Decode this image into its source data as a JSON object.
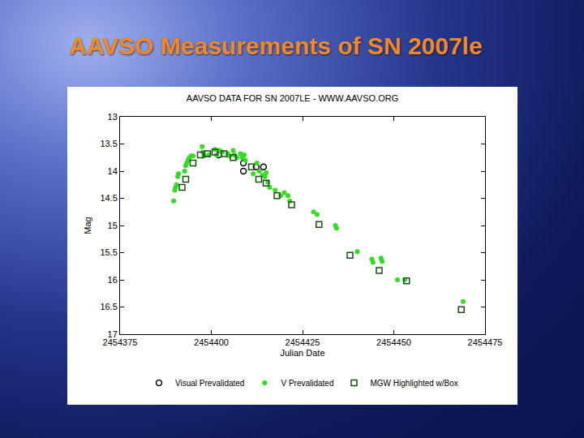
{
  "slide": {
    "title": "AAVSO Measurements of SN 2007le"
  },
  "chart_data": {
    "type": "scatter",
    "title": "AAVSO DATA FOR SN 2007LE - WWW.AAVSO.ORG",
    "x_label": "Julian Date",
    "y_label": "Mag",
    "xlim": [
      2454375,
      2454475
    ],
    "xticks": [
      2454375,
      2454400,
      2454425,
      2454450,
      2454475
    ],
    "ylim": [
      17,
      13
    ],
    "yticks": [
      13,
      13.5,
      14,
      14.5,
      15,
      15.5,
      16,
      16.5,
      17
    ],
    "grid": false,
    "legend": "bottom",
    "series": [
      {
        "name": "Visual Prevalidated",
        "color": "#000000",
        "marker": "circle-open",
        "x": [
          2454402.0,
          2454408.8,
          2454408.8,
          2454412.3,
          2454414.3
        ],
        "values": [
          13.7,
          14.0,
          13.85,
          13.92,
          13.92
        ]
      },
      {
        "name": "V Prevalidated",
        "color": "#33dd22",
        "marker": "circle",
        "x": [
          2454389.7,
          2454390.0,
          2454390.2,
          2454390.5,
          2454390.8,
          2454391.0,
          2454392.7,
          2454393.0,
          2454393.3,
          2454393.6,
          2454394.0,
          2454394.5,
          2454395.0,
          2454397.5,
          2454397.7,
          2454398.0,
          2454399.3,
          2454401.0,
          2454401.5,
          2454402.2,
          2454403.0,
          2454404.5,
          2454405.0,
          2454406.0,
          2454406.3,
          2454407.0,
          2454408.0,
          2454408.5,
          2454409.0,
          2454409.3,
          2454411.5,
          2454412.5,
          2454413.2,
          2454414.0,
          2454414.7,
          2454415.0,
          2454415.5,
          2454416.0,
          2454417.5,
          2454419.0,
          2454420.0,
          2454421.0,
          2454421.5,
          2454428.0,
          2454429.0,
          2454434.0,
          2454434.3,
          2454440.0,
          2454444.0,
          2454444.3,
          2454446.5,
          2454446.8,
          2454451.0,
          2454453.0,
          2454469.0
        ],
        "values": [
          14.55,
          14.35,
          14.3,
          14.25,
          14.1,
          14.05,
          14.0,
          13.9,
          13.85,
          13.8,
          13.75,
          13.72,
          13.72,
          13.55,
          13.65,
          13.72,
          13.7,
          13.6,
          13.7,
          13.62,
          13.65,
          13.68,
          13.72,
          13.62,
          13.7,
          13.75,
          13.68,
          13.75,
          13.7,
          13.8,
          14.05,
          13.85,
          14.0,
          14.08,
          14.1,
          14.03,
          14.2,
          14.3,
          14.35,
          14.45,
          14.4,
          14.45,
          14.55,
          14.75,
          14.8,
          15.0,
          15.05,
          15.48,
          15.62,
          15.68,
          15.6,
          15.66,
          16.0,
          16.0,
          16.4
        ]
      },
      {
        "name": "MGW Highlighted w/Box",
        "color": "#1f4a1a",
        "marker": "square-open",
        "x": [
          2454392.0,
          2454393.0,
          2454395.0,
          2454397.0,
          2454399.0,
          2454401.0,
          2454403.5,
          2454406.0,
          2454411.0,
          2454413.0,
          2454415.0,
          2454418.0,
          2454422.0,
          2454429.5,
          2454438.0,
          2454446.0,
          2454453.5,
          2454468.5
        ],
        "values": [
          14.3,
          14.15,
          13.85,
          13.7,
          13.68,
          13.65,
          13.68,
          13.75,
          13.92,
          14.15,
          14.22,
          14.45,
          14.62,
          14.98,
          15.55,
          15.83,
          16.02,
          16.55
        ]
      }
    ]
  }
}
